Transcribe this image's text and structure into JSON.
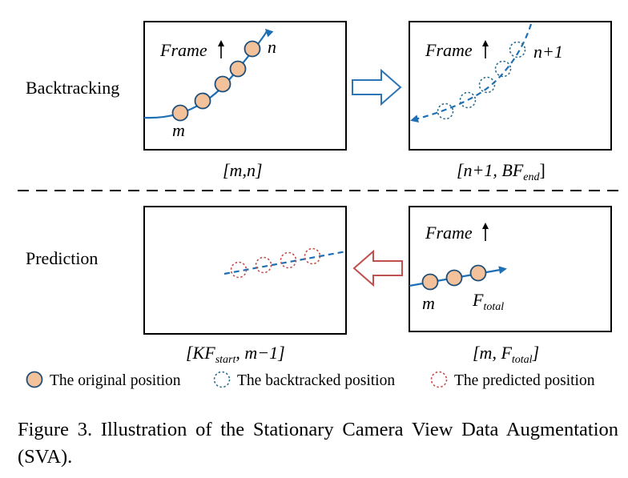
{
  "rows": {
    "backtracking_label": "Backtracking",
    "prediction_label": "Prediction"
  },
  "frames": {
    "frame_label": "Frame",
    "top_left": {
      "point_start": "m",
      "point_end": "n",
      "range": "[m,n]"
    },
    "top_right": {
      "point_end": "n+1",
      "range_prefix": "[n+1, BF",
      "range_sub": "end",
      "range_suffix": "]"
    },
    "bottom_left": {
      "range_prefix": "[KF",
      "range_sub": "start",
      "range_suffix": ", m−1]"
    },
    "bottom_right": {
      "point_start": "m",
      "point_end_main": "F",
      "point_end_sub": "total",
      "range_prefix": "[m, F",
      "range_sub": "total",
      "range_suffix": "]"
    }
  },
  "legend": {
    "original": "The original position",
    "backtracked": "The backtracked position",
    "predicted": "The predicted position"
  },
  "colors": {
    "original_fill": "#f3c29b",
    "original_stroke": "#1f4e79",
    "trajectory": "#1f6fb5",
    "backtracked_stroke": "#2e6f8e",
    "predicted_stroke": "#c0504d",
    "arrow_forward_stroke": "#2e75b6",
    "arrow_backward_stroke": "#c0504d"
  },
  "caption": "Figure 3.  Illustration of the Stationary Camera View Data Augmentation (SVA)."
}
